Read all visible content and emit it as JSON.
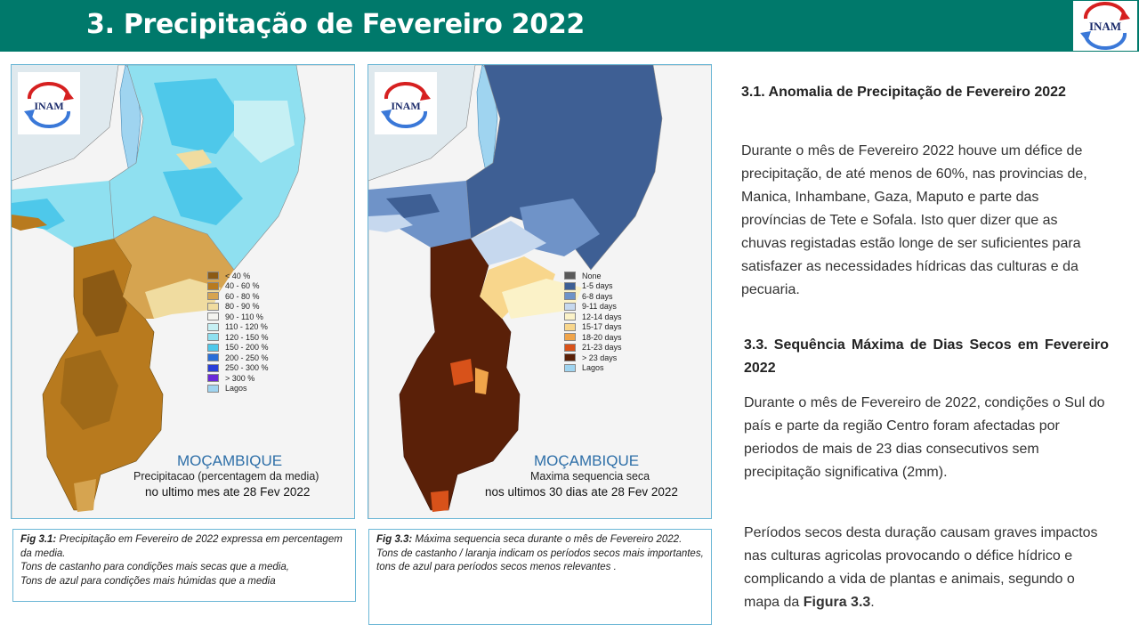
{
  "header": {
    "title": "3. Precipitação de Fevereiro 2022",
    "logo_text": "INAM"
  },
  "colors": {
    "header_bg": "#00796b",
    "panel_border": "#6cb7d6",
    "map_bg": "#dfe9ee"
  },
  "map_left": {
    "logo_text": "INAM",
    "country": "MOÇAMBIQUE",
    "subtitle": "Precipitacao (percentagem da media)",
    "period": "no ultimo mes ate 28 Fev 2022",
    "legend": [
      {
        "label": "< 40 %",
        "color": "#8c5a14"
      },
      {
        "label": "40 - 60 %",
        "color": "#b87a1e"
      },
      {
        "label": "60 - 80 %",
        "color": "#d6a450"
      },
      {
        "label": "80 - 90 %",
        "color": "#f0dca0"
      },
      {
        "label": "90 - 110 %",
        "color": "#f4f4f0"
      },
      {
        "label": "110 - 120 %",
        "color": "#c6f0f4"
      },
      {
        "label": "120 - 150 %",
        "color": "#8fe0f0"
      },
      {
        "label": "150 - 200 %",
        "color": "#4ec8ea"
      },
      {
        "label": "200 - 250 %",
        "color": "#2a6ed8"
      },
      {
        "label": "250 - 300 %",
        "color": "#2a3ed8"
      },
      {
        "label": "> 300 %",
        "color": "#6a2ad8"
      },
      {
        "label": "Lagos",
        "color": "#9fd4f0"
      }
    ]
  },
  "map_right": {
    "logo_text": "INAM",
    "country": "MOÇAMBIQUE",
    "subtitle": "Maxima sequencia seca",
    "period": "nos ultimos 30 dias ate 28 Fev 2022",
    "legend": [
      {
        "label": "None",
        "color": "#5a5a5a"
      },
      {
        "label": "1-5 days",
        "color": "#3e5f94"
      },
      {
        "label": "6-8 days",
        "color": "#6f93c8"
      },
      {
        "label": "9-11 days",
        "color": "#c6d8ee"
      },
      {
        "label": "12-14 days",
        "color": "#fbf2c8"
      },
      {
        "label": "15-17 days",
        "color": "#f8d68c"
      },
      {
        "label": "18-20 days",
        "color": "#f0a44a"
      },
      {
        "label": "21-23 days",
        "color": "#d8521a"
      },
      {
        "label": "> 23 days",
        "color": "#5a2008"
      },
      {
        "label": "Lagos",
        "color": "#9fd4f0"
      }
    ]
  },
  "caption_left": {
    "fig": "Fig 3.1:",
    "text": " Precipitação em Fevereiro de 2022  expressa em percentagem da media.",
    "line2": "Tons de castanho para condições mais secas que a media,",
    "line3": "Tons de azul para condições mais húmidas que a media"
  },
  "caption_right": {
    "fig": "Fig 3.3:",
    "text": " Máxima sequencia seca durante o mês de Fevereiro 2022.",
    "line2": "Tons de castanho / laranja indicam os períodos secos mais importantes, tons de azul para períodos secos menos relevantes ."
  },
  "section1": {
    "title": "3.1. Anomalia de Precipitação de Fevereiro 2022",
    "body": "Durante o mês de Fevereiro 2022 houve um défice de precipitação, de até menos de 60%, nas provincias de, Manica, Inhambane,  Gaza, Maputo e parte das províncias de Tete e Sofala. Isto quer dizer que as chuvas registadas estão longe de ser suficientes para satisfazer as necessidades hídricas das culturas e da pecuaria."
  },
  "section2": {
    "title": "3.3. Sequência Máxima de Dias Secos em Fevereiro 2022",
    "body": "Durante o mês de Fevereiro de  2022, condições o Sul do país e parte da região Centro foram afectadas por periodos de mais de 23 dias consecutivos sem precipitação significativa (2mm)."
  },
  "section3": {
    "body": "Períodos secos desta duração causam graves impactos nas culturas agricolas  provocando o défice hídrico e complicando a vida de plantas e animais, segundo o mapa da ",
    "bold": "Figura 3.3",
    "end": "."
  }
}
